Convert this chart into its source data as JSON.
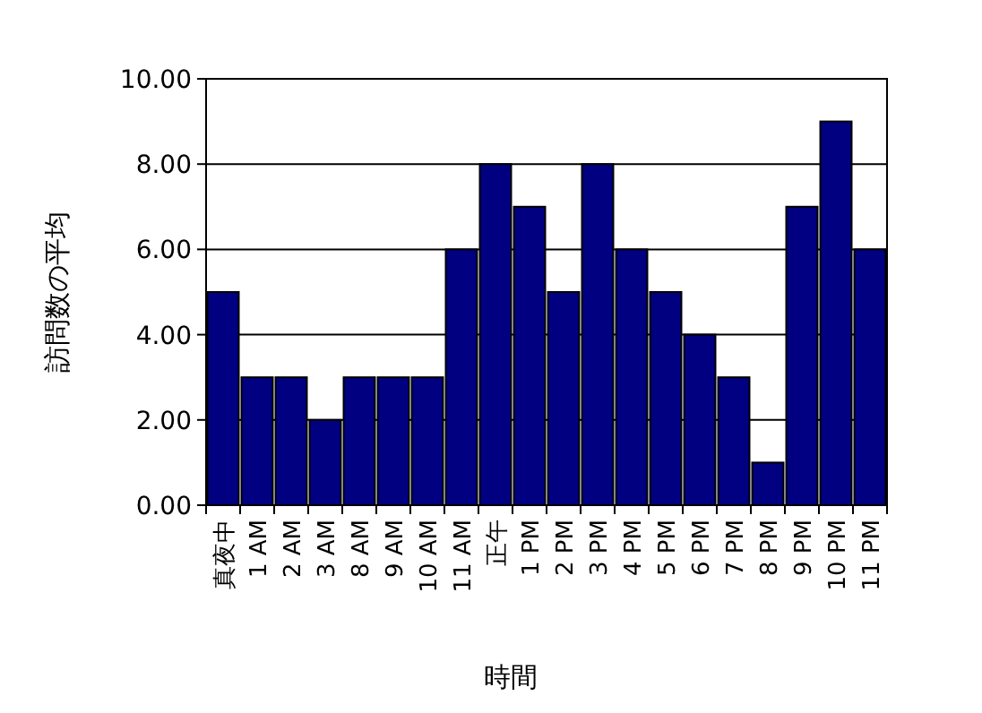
{
  "chart_data": {
    "type": "bar",
    "xlabel": "時間",
    "ylabel": "訪問数の平均",
    "categories": [
      "真夜中",
      "1 AM",
      "2 AM",
      "3 AM",
      "8 AM",
      "9 AM",
      "10 AM",
      "11 AM",
      "正午",
      "1 PM",
      "2 PM",
      "3 PM",
      "4 PM",
      "5 PM",
      "6 PM",
      "7 PM",
      "8 PM",
      "9 PM",
      "10 PM",
      "11 PM"
    ],
    "values": [
      5,
      3,
      3,
      2,
      3,
      3,
      3,
      6,
      8,
      7,
      5,
      8,
      6,
      5,
      4,
      3,
      1,
      7,
      9,
      6
    ],
    "color": "#000080",
    "ylim": [
      0,
      10
    ],
    "yticks": [
      {
        "value": 0,
        "label": "0.00"
      },
      {
        "value": 2,
        "label": "2.00"
      },
      {
        "value": 4,
        "label": "4.00"
      },
      {
        "value": 6,
        "label": "6.00"
      },
      {
        "value": 8,
        "label": "8.00"
      },
      {
        "value": 10,
        "label": "10.00"
      }
    ],
    "grid": "y"
  }
}
